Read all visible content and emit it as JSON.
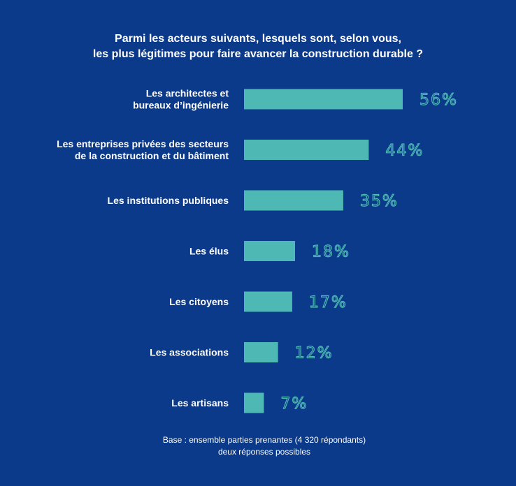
{
  "colors": {
    "background": "#0b3a8a",
    "bar": "#4db8b4",
    "text": "#ffffff"
  },
  "chart_data": {
    "type": "bar",
    "orientation": "horizontal",
    "title": [
      "Parmi les acteurs suivants, lesquels sont, selon vous,",
      "les plus légitimes pour faire avancer la construction durable ?"
    ],
    "categories": [
      [
        "Les architectes et",
        "bureaux d’ingénierie"
      ],
      [
        "Les entreprises privées des secteurs",
        "de la construction et du bâtiment"
      ],
      [
        "Les institutions publiques"
      ],
      [
        "Les élus"
      ],
      [
        "Les citoyens"
      ],
      [
        "Les associations"
      ],
      [
        "Les artisans"
      ]
    ],
    "values": [
      56,
      44,
      35,
      18,
      17,
      12,
      7
    ],
    "value_labels": [
      "56%",
      "44%",
      "35%",
      "18%",
      "17%",
      "12%",
      "7%"
    ],
    "unit": "%",
    "xlim": [
      0,
      56
    ],
    "grid": false,
    "legend": "none"
  },
  "footnote": [
    "Base : ensemble parties prenantes (4 320 répondants)",
    "deux réponses possibles"
  ]
}
